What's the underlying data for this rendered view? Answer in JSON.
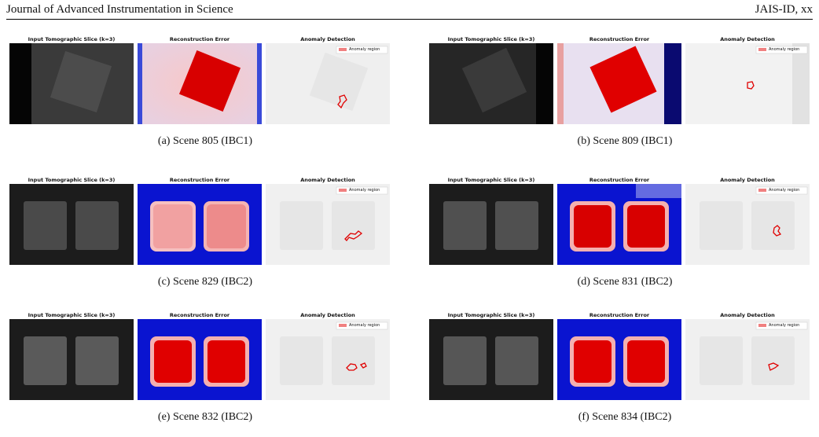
{
  "header": {
    "journal": "Journal of Advanced Instrumentation in Science",
    "id": "JAIS-ID, xx"
  },
  "panel_titles": {
    "input": "Input Tomographic Slice (k=3)",
    "error": "Reconstruction Error",
    "anomaly": "Anomaly Detection"
  },
  "legend_label": "Anomaly region",
  "colors": {
    "anomaly_outline": "#e00000",
    "error_high": "#e00000",
    "error_low": "#0000c8"
  },
  "figures": [
    {
      "caption": "(a) Scene 805 (IBC1)",
      "layout": "single"
    },
    {
      "caption": "(b) Scene 809 (IBC1)",
      "layout": "single"
    },
    {
      "caption": "(c) Scene 829 (IBC2)",
      "layout": "double"
    },
    {
      "caption": "(d) Scene 831 (IBC2)",
      "layout": "double"
    },
    {
      "caption": "(e) Scene 832 (IBC2)",
      "layout": "double"
    },
    {
      "caption": "(f) Scene 834 (IBC2)",
      "layout": "double"
    }
  ]
}
